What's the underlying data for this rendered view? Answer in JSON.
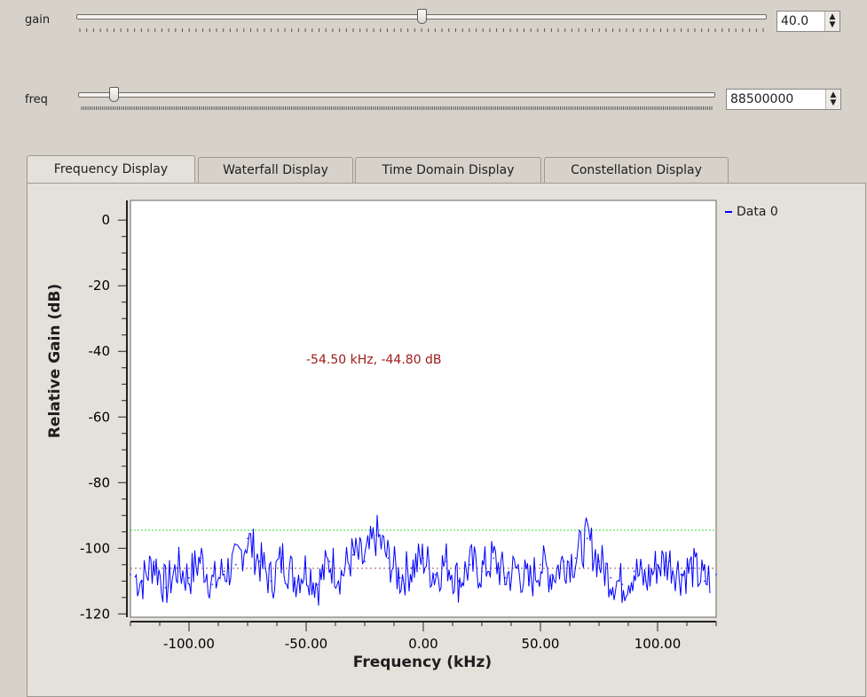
{
  "controls": {
    "gain": {
      "label": "gain",
      "value": "40.0",
      "level": 0.5
    },
    "freq": {
      "label": "freq",
      "value": "88500000",
      "level": 0.05
    }
  },
  "tabs": [
    {
      "label": "Frequency Display",
      "active": true
    },
    {
      "label": "Waterfall Display",
      "active": false
    },
    {
      "label": "Time Domain Display",
      "active": false
    },
    {
      "label": "Constellation Display",
      "active": false
    }
  ],
  "chart_data": {
    "type": "line",
    "xlabel": "Frequency (kHz)",
    "ylabel": "Relative Gain (dB)",
    "xlim": [
      -125,
      125
    ],
    "ylim": [
      -121,
      6
    ],
    "x_ticks": [
      "-100.00",
      "-50.00",
      "0.00",
      "50.00",
      "100.00"
    ],
    "y_ticks": [
      "0",
      "-20",
      "-40",
      "-60",
      "-80",
      "-100",
      "-120"
    ],
    "legend": "top-right",
    "annotation": "-54.50 kHz, -44.80 dB",
    "max_hold_level": -94.5,
    "series": [
      {
        "name": "Data 0",
        "color": "#0000ff",
        "x": [
          -125,
          -120,
          -115,
          -110,
          -105,
          -100,
          -95,
          -90,
          -85,
          -80,
          -75,
          -70,
          -65,
          -60,
          -55,
          -50,
          -45,
          -40,
          -35,
          -30,
          -25,
          -20,
          -15,
          -10,
          -5,
          0,
          5,
          10,
          15,
          20,
          25,
          30,
          35,
          40,
          45,
          50,
          55,
          60,
          65,
          70,
          75,
          80,
          85,
          90,
          95,
          100,
          105,
          110,
          115,
          120,
          125
        ],
        "values": [
          -108,
          -110,
          -104,
          -112,
          -106,
          -109,
          -103,
          -111,
          -107,
          -105,
          -97,
          -104,
          -110,
          -103,
          -109,
          -106,
          -111,
          -104,
          -108,
          -102,
          -104,
          -96,
          -103,
          -109,
          -106,
          -103,
          -108,
          -104,
          -110,
          -105,
          -107,
          -103,
          -109,
          -106,
          -111,
          -105,
          -108,
          -104,
          -103,
          -97,
          -104,
          -109,
          -111,
          -107,
          -110,
          -105,
          -104,
          -108,
          -106,
          -110,
          -108
        ]
      }
    ]
  }
}
